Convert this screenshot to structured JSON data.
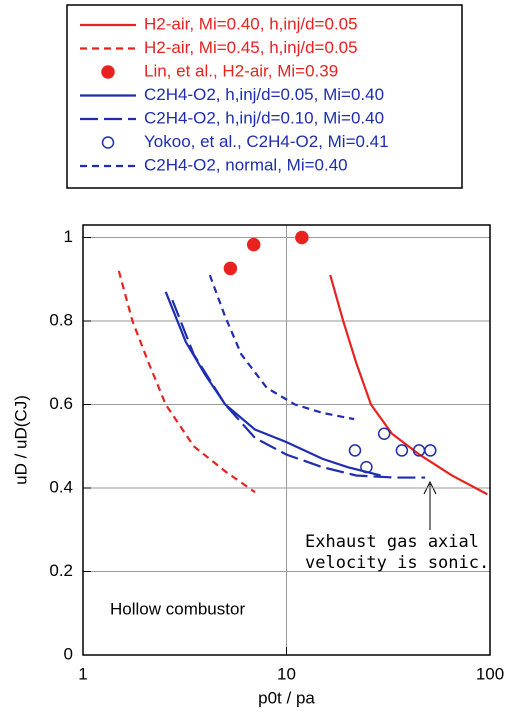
{
  "chart_data": {
    "type": "line",
    "xlabel": "p0t / pa",
    "ylabel": "uD / uD(CJ)",
    "xscale": "log",
    "xlim": [
      1,
      100
    ],
    "ylim": [
      0,
      1.03
    ],
    "xticks": [
      1,
      10,
      100
    ],
    "yticks": [
      0,
      0.2,
      0.4,
      0.6,
      0.8,
      1
    ],
    "grid": true,
    "legend": "top",
    "annotations": [
      "Hollow combustor",
      "Exhaust gas axial",
      "velocity is sonic."
    ],
    "series": [
      {
        "name": "H2-air, Mi=0.40, h,inj/d=0.05",
        "color": "#e8231f",
        "style": "solid",
        "x": [
          16.4,
          19,
          22,
          26,
          33,
          45,
          65,
          97
        ],
        "values": [
          0.91,
          0.8,
          0.7,
          0.6,
          0.53,
          0.48,
          0.43,
          0.385
        ]
      },
      {
        "name": "H2-air, Mi=0.45, h,inj/d=0.05",
        "color": "#e8231f",
        "style": "dashed",
        "x": [
          1.5,
          1.75,
          2.1,
          2.55,
          3.5,
          5,
          7
        ],
        "values": [
          0.92,
          0.8,
          0.7,
          0.6,
          0.5,
          0.44,
          0.39
        ]
      },
      {
        "name": "Lin, et al., H2-air, Mi=0.39",
        "color": "#e8231f",
        "style": "filled",
        "x": [
          5.3,
          6.9,
          11.9
        ],
        "values": [
          0.926,
          0.983,
          1.0
        ]
      },
      {
        "name": "C2H4-O2, h,inj/d=0.05, Mi=0.40",
        "color": "#1f2eb0",
        "style": "solid",
        "x": [
          2.55,
          3.2,
          4,
          5,
          7,
          10,
          15,
          20,
          29
        ],
        "values": [
          0.87,
          0.75,
          0.67,
          0.6,
          0.54,
          0.51,
          0.47,
          0.45,
          0.43
        ]
      },
      {
        "name": "C2H4-O2, h,inj/d=0.10, Mi=0.40",
        "color": "#1f2eb0",
        "style": "longdash",
        "x": [
          2.75,
          3.5,
          5,
          7,
          10,
          15,
          22,
          34,
          48
        ],
        "values": [
          0.85,
          0.72,
          0.6,
          0.52,
          0.48,
          0.45,
          0.43,
          0.425,
          0.425
        ]
      },
      {
        "name": "Yokoo, et al., C2H4-O2, Mi=0.41",
        "color": "#1f2eb0",
        "style": "open",
        "x": [
          21.7,
          24.7,
          30.2,
          36.9,
          44.8,
          50.9
        ],
        "values": [
          0.49,
          0.45,
          0.53,
          0.49,
          0.49,
          0.49
        ]
      },
      {
        "name": "C2H4-O2, normal, Mi=0.40",
        "color": "#1f2eb0",
        "style": "dashed",
        "x": [
          4.2,
          5,
          6,
          8,
          11,
          15,
          21.5
        ],
        "values": [
          0.91,
          0.81,
          0.72,
          0.64,
          0.6,
          0.58,
          0.565
        ]
      }
    ]
  }
}
